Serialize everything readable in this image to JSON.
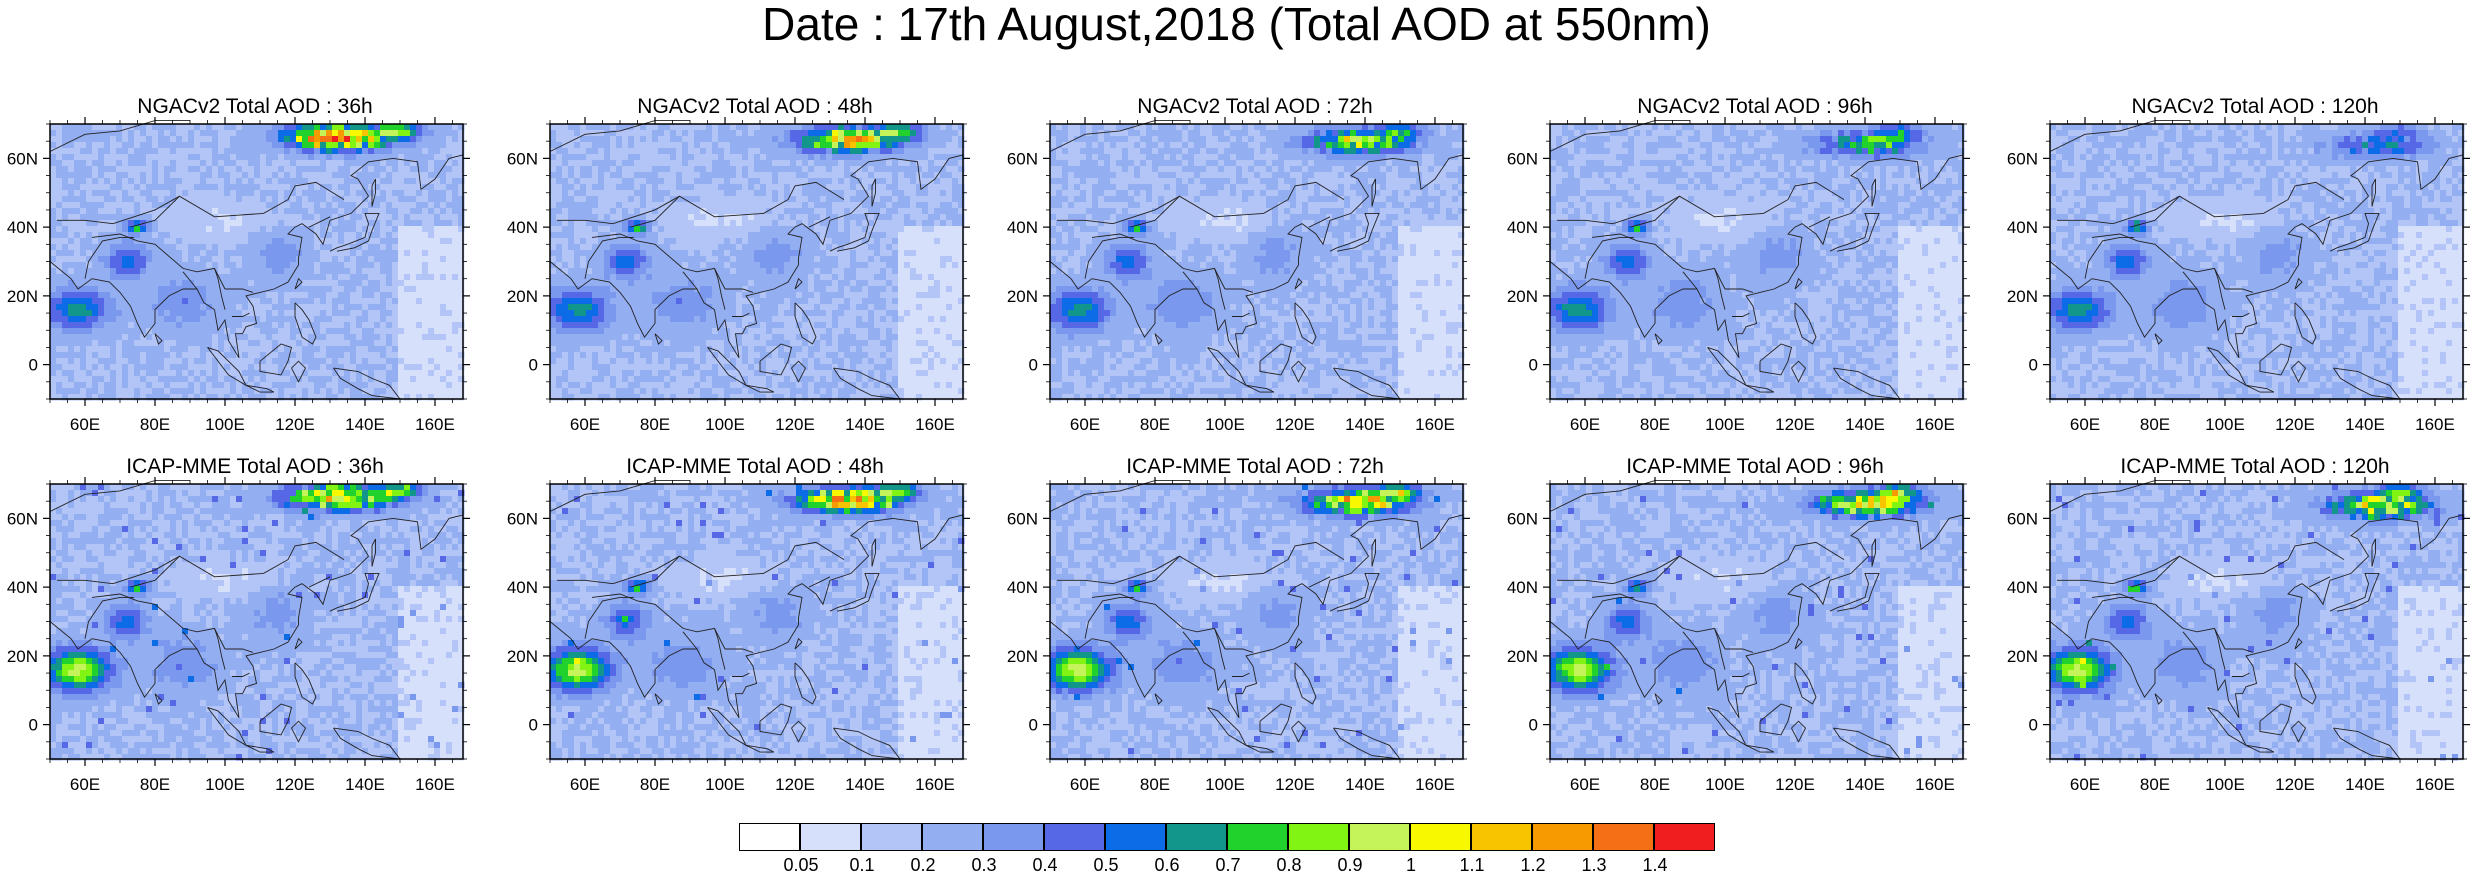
{
  "title": "Date : 17th August,2018 (Total AOD at 550nm)",
  "panels": [
    {
      "title": "NGACv2 Total AOD : 36h",
      "model": "NGACv2",
      "lead": "36h"
    },
    {
      "title": "NGACv2 Total AOD : 48h",
      "model": "NGACv2",
      "lead": "48h"
    },
    {
      "title": "NGACv2 Total AOD : 72h",
      "model": "NGACv2",
      "lead": "72h"
    },
    {
      "title": "NGACv2 Total AOD : 96h",
      "model": "NGACv2",
      "lead": "96h"
    },
    {
      "title": "NGACv2 Total AOD : 120h",
      "model": "NGACv2",
      "lead": "120h"
    },
    {
      "title": "ICAP-MME Total AOD : 36h",
      "model": "ICAP-MME",
      "lead": "36h"
    },
    {
      "title": "ICAP-MME Total AOD : 48h",
      "model": "ICAP-MME",
      "lead": "48h"
    },
    {
      "title": "ICAP-MME Total AOD : 72h",
      "model": "ICAP-MME",
      "lead": "72h"
    },
    {
      "title": "ICAP-MME Total AOD : 96h",
      "model": "ICAP-MME",
      "lead": "96h"
    },
    {
      "title": "ICAP-MME Total AOD : 120h",
      "model": "ICAP-MME",
      "lead": "120h"
    }
  ],
  "map_extent": {
    "lon": [
      50,
      168
    ],
    "lat": [
      -10,
      70
    ]
  },
  "x_ticks": [
    "60E",
    "80E",
    "100E",
    "120E",
    "140E",
    "160E"
  ],
  "x_tick_values": [
    60,
    80,
    100,
    120,
    140,
    160
  ],
  "y_ticks": [
    "60N",
    "40N",
    "20N",
    "0"
  ],
  "y_tick_values": [
    60,
    40,
    20,
    0
  ],
  "colorbar": {
    "labels": [
      "0.05",
      "0.1",
      "0.2",
      "0.3",
      "0.4",
      "0.5",
      "0.6",
      "0.7",
      "0.8",
      "0.9",
      "1",
      "1.1",
      "1.2",
      "1.3",
      "1.4"
    ],
    "colors": [
      "#ffffff",
      "#d6e0fb",
      "#b3c4f6",
      "#94aef2",
      "#7a98ee",
      "#5768e6",
      "#0c6ce7",
      "#12958a",
      "#22d22c",
      "#82f414",
      "#c4f45a",
      "#f8f800",
      "#f8c400",
      "#f59a00",
      "#f57014",
      "#f01e1e"
    ]
  }
}
